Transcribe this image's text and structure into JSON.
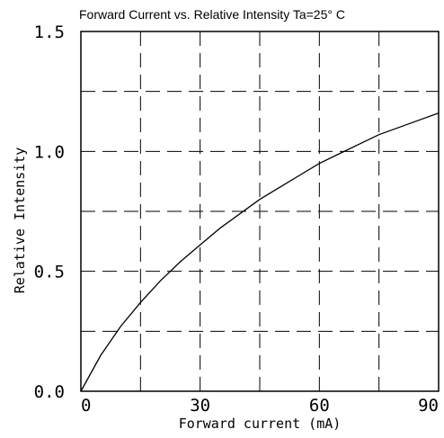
{
  "chart_data": {
    "type": "line",
    "title": "Forward Current vs. Relative Intensity  Ta=25° C",
    "xlabel": "Forward current (mA)",
    "ylabel": "Relative Intensity",
    "xlim": [
      0,
      90
    ],
    "ylim": [
      0,
      1.5
    ],
    "x_ticks": [
      {
        "value": 0,
        "label": "0"
      },
      {
        "value": 30,
        "label": "30"
      },
      {
        "value": 60,
        "label": "60"
      },
      {
        "value": 90,
        "label": "90"
      }
    ],
    "y_ticks": [
      {
        "value": 0,
        "label": "0.0"
      },
      {
        "value": 0.5,
        "label": "0.5"
      },
      {
        "value": 1.0,
        "label": "1.0"
      },
      {
        "value": 1.5,
        "label": "1.5"
      }
    ],
    "x_grid": [
      15,
      30,
      45,
      60,
      75
    ],
    "y_grid": [
      0.25,
      0.5,
      0.75,
      1.0,
      1.25
    ],
    "grid": true,
    "series": [
      {
        "x": [
          0,
          5,
          10,
          15,
          20,
          25,
          30,
          35,
          40,
          45,
          50,
          55,
          60,
          65,
          70,
          75,
          80,
          85,
          90
        ],
        "y": [
          0,
          0.15,
          0.27,
          0.37,
          0.46,
          0.54,
          0.61,
          0.68,
          0.74,
          0.8,
          0.85,
          0.9,
          0.95,
          0.99,
          1.03,
          1.07,
          1.1,
          1.13,
          1.16
        ]
      }
    ]
  }
}
